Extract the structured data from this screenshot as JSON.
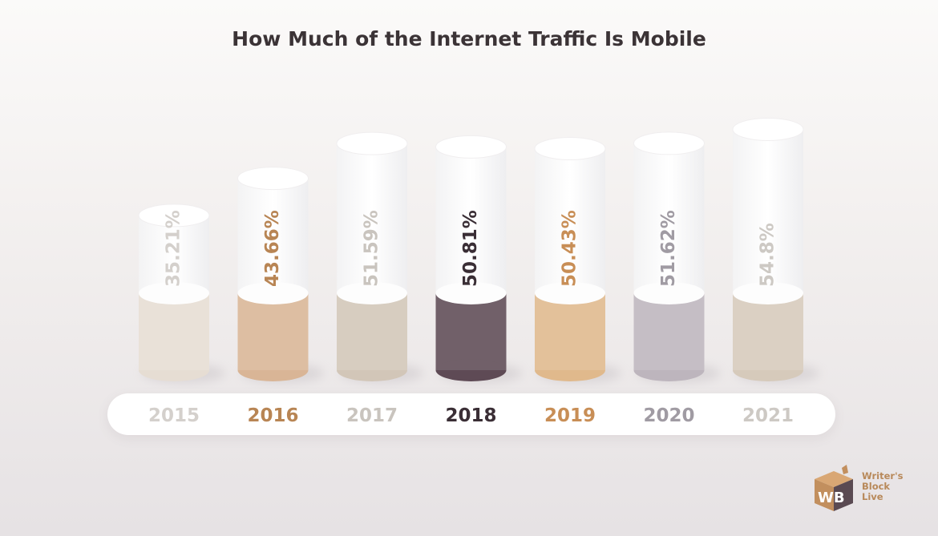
{
  "title": "How Much of the Internet Traffic Is Mobile",
  "chart_data": {
    "type": "bar",
    "title": "How Much of the Internet Traffic Is Mobile",
    "categories": [
      "2015",
      "2016",
      "2017",
      "2018",
      "2019",
      "2020",
      "2021"
    ],
    "values": [
      35.21,
      43.66,
      51.59,
      50.81,
      50.43,
      51.62,
      54.8
    ],
    "value_labels": [
      "35.21%",
      "43.66%",
      "51.59%",
      "50.81%",
      "50.43%",
      "51.62%",
      "54.8%"
    ],
    "unit": "%",
    "colors": [
      "#e6ddd3",
      "#d9b596",
      "#d2c6b8",
      "#5e4a55",
      "#e0b98c",
      "#bdb5bd",
      "#d6cabb"
    ],
    "label_colors": [
      "#d4d0cc",
      "#b88554",
      "#c9c4be",
      "#3a2e35",
      "#c88e56",
      "#a09ba3",
      "#cdc9c4"
    ]
  },
  "logo": {
    "line1": "Writer's",
    "line2": "Block",
    "line3": "Live",
    "mark": "WB",
    "brand_color": "#b8895a",
    "dark_color": "#5a4a52"
  }
}
